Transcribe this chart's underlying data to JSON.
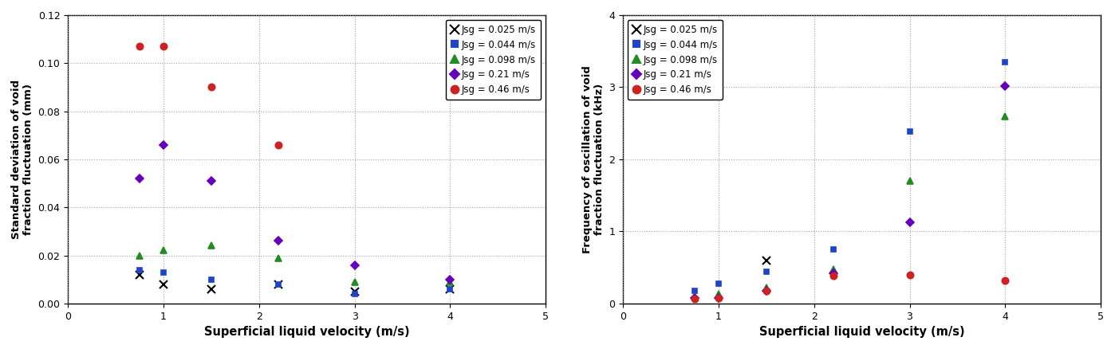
{
  "left": {
    "ylabel": "Standard deviation of void\nfraction fluctuation (mm)",
    "xlabel": "Superficial liquid velocity (m/s)",
    "xlim": [
      0,
      5
    ],
    "ylim": [
      0.0,
      0.12
    ],
    "yticks": [
      0.0,
      0.02,
      0.04,
      0.06,
      0.08,
      0.1,
      0.12
    ],
    "xticks": [
      0,
      1,
      2,
      3,
      4,
      5
    ],
    "series": [
      {
        "label": "Jsg = 0.025 m/s",
        "marker": "x",
        "color": "#000000",
        "linestyle": "--",
        "fit": true,
        "x": [
          0.75,
          1.0,
          1.5,
          2.2,
          3.0,
          4.0
        ],
        "y": [
          0.012,
          0.008,
          0.006,
          0.008,
          0.005,
          0.006
        ]
      },
      {
        "label": "Jsg = 0.044 m/s",
        "marker": "s",
        "color": "#1F44CC",
        "linestyle": "--",
        "fit": true,
        "x": [
          0.75,
          1.0,
          1.5,
          2.2,
          3.0,
          4.0
        ],
        "y": [
          0.014,
          0.013,
          0.01,
          0.008,
          0.004,
          0.006
        ]
      },
      {
        "label": "Jsg = 0.098 m/s",
        "marker": "^",
        "color": "#228B22",
        "linestyle": "--",
        "fit": true,
        "x": [
          0.75,
          1.0,
          1.5,
          2.2,
          3.0,
          4.0
        ],
        "y": [
          0.02,
          0.022,
          0.024,
          0.019,
          0.009,
          0.009
        ]
      },
      {
        "label": "Jsg = 0.21 m/s",
        "marker": "D",
        "color": "#6600BB",
        "linestyle": "--",
        "fit": true,
        "x": [
          0.75,
          1.0,
          1.5,
          2.2,
          3.0,
          4.0
        ],
        "y": [
          0.052,
          0.066,
          0.051,
          0.026,
          0.016,
          0.01
        ]
      },
      {
        "label": "Jsg = 0.46 m/s",
        "marker": "o",
        "color": "#CC2222",
        "linestyle": "-",
        "fit": true,
        "x": [
          0.75,
          1.0,
          1.5,
          2.2
        ],
        "y": [
          0.107,
          0.107,
          0.09,
          0.066
        ]
      }
    ]
  },
  "right": {
    "ylabel": "Frequency of oscillation of void\nfraction fluctuation (kHz)",
    "xlabel": "Superficial liquid velocity (m/s)",
    "xlim": [
      0,
      5
    ],
    "ylim": [
      0,
      4
    ],
    "yticks": [
      0,
      1,
      2,
      3,
      4
    ],
    "xticks": [
      0,
      1,
      2,
      3,
      4,
      5
    ],
    "series": [
      {
        "label": "Jsg = 0.025 m/s",
        "marker": "x",
        "color": "#000000",
        "linestyle": "--",
        "fit": false,
        "x": [
          1.5
        ],
        "y": [
          0.6
        ]
      },
      {
        "label": "Jsg = 0.044 m/s",
        "marker": "s",
        "color": "#1F44CC",
        "linestyle": "--",
        "fit": true,
        "x": [
          0.75,
          1.0,
          1.5,
          2.2,
          3.0,
          4.0
        ],
        "y": [
          0.18,
          0.27,
          0.44,
          0.75,
          2.38,
          3.35
        ]
      },
      {
        "label": "Jsg = 0.098 m/s",
        "marker": "^",
        "color": "#228B22",
        "linestyle": "--",
        "fit": true,
        "x": [
          0.75,
          1.0,
          1.5,
          2.2,
          3.0,
          4.0
        ],
        "y": [
          0.1,
          0.13,
          0.22,
          0.47,
          1.7,
          2.6
        ]
      },
      {
        "label": "Jsg = 0.21 m/s",
        "marker": "D",
        "color": "#6600BB",
        "linestyle": "--",
        "fit": true,
        "x": [
          0.75,
          1.0,
          1.5,
          2.2,
          3.0,
          4.0
        ],
        "y": [
          0.07,
          0.08,
          0.18,
          0.42,
          1.13,
          3.02
        ]
      },
      {
        "label": "Jsg = 0.46 m/s",
        "marker": "o",
        "color": "#CC2222",
        "linestyle": "--",
        "fit": false,
        "x": [
          0.75,
          1.0,
          1.5,
          2.2,
          3.0,
          4.0
        ],
        "y": [
          0.06,
          0.08,
          0.18,
          0.38,
          0.4,
          0.32
        ]
      }
    ]
  },
  "bg_color": "#ffffff",
  "grid_color": "#999999",
  "fig_width": 13.98,
  "fig_height": 4.38
}
